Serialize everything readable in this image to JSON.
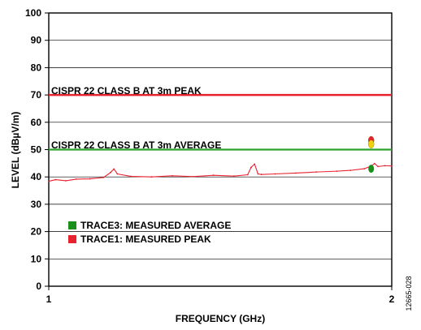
{
  "chart_data": {
    "type": "line",
    "xlabel": "FREQUENCY (GHz)",
    "ylabel": "LEVEL (dBµV/m)",
    "xlim": [
      1,
      2
    ],
    "ylim": [
      0,
      100
    ],
    "x_ticks": [
      1,
      2
    ],
    "x_tick_labels": [
      "1",
      "2"
    ],
    "y_ticks": [
      0,
      10,
      20,
      30,
      40,
      50,
      60,
      70,
      80,
      90,
      100
    ],
    "y_tick_labels": [
      "0",
      "10",
      "20",
      "30",
      "40",
      "50",
      "60",
      "70",
      "80",
      "90",
      "100"
    ],
    "grid": "horizontal",
    "legend_position": "lower-left",
    "figure_id": "12665-028",
    "series": [
      {
        "name": "TRACE1: MEASURED PEAK",
        "color": "#e8212f",
        "x": [
          1.0,
          1.02,
          1.05,
          1.08,
          1.12,
          1.16,
          1.18,
          1.19,
          1.2,
          1.24,
          1.3,
          1.36,
          1.42,
          1.48,
          1.54,
          1.58,
          1.59,
          1.6,
          1.61,
          1.62,
          1.66,
          1.72,
          1.78,
          1.84,
          1.88,
          1.92,
          1.94,
          1.95,
          1.96,
          1.98,
          2.0
        ],
        "y": [
          38.4,
          39.0,
          38.6,
          39.2,
          39.3,
          39.8,
          41.6,
          42.9,
          41.1,
          40.2,
          40.0,
          40.4,
          40.1,
          40.6,
          40.3,
          40.8,
          43.5,
          44.7,
          41.1,
          40.9,
          41.1,
          41.4,
          41.8,
          42.1,
          42.4,
          43.0,
          44.0,
          44.9,
          43.8,
          44.1,
          44.0
        ]
      },
      {
        "name": "CISPR 22 CLASS B AT 3m PEAK",
        "color": "#e8212f",
        "x": [
          1,
          2
        ],
        "y": [
          70,
          70
        ]
      },
      {
        "name": "CISPR 22 CLASS B AT 3m AVERAGE",
        "color": "#2aa52a",
        "x": [
          1,
          2
        ],
        "y": [
          50,
          50
        ]
      },
      {
        "name": "TRACE3: MEASURED AVERAGE",
        "color": "#1a8f1a",
        "x": [
          1.94
        ],
        "y": [
          43.0
        ]
      }
    ],
    "peak_markers": [
      {
        "x": 1.94,
        "y": 53.4,
        "color": "#e8212f"
      },
      {
        "x": 1.94,
        "y": 52.0,
        "color": "#f0d20a"
      }
    ]
  }
}
